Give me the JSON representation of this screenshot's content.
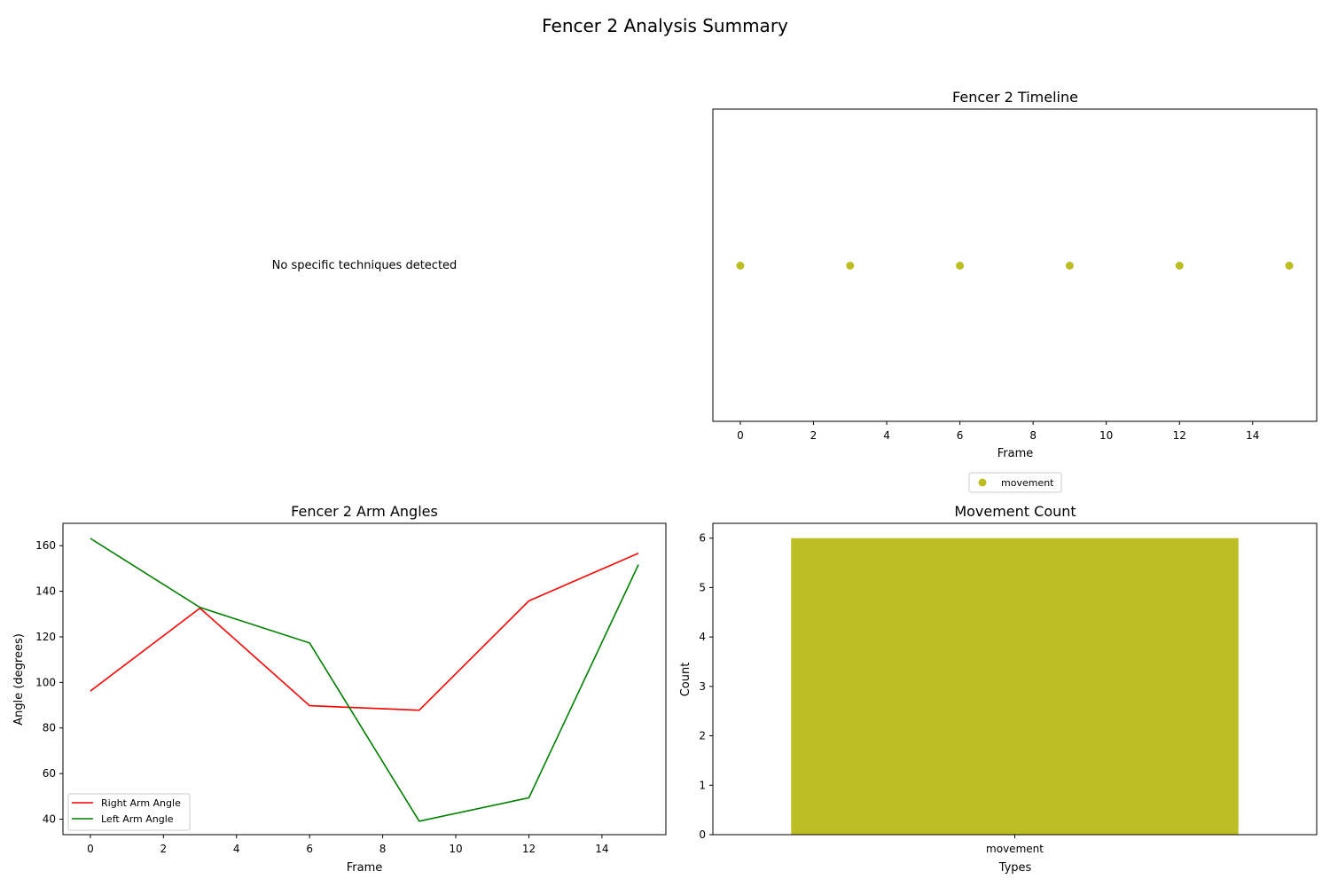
{
  "figure": {
    "title": "Fencer 2 Analysis Summary"
  },
  "chart_data": [
    {
      "type": "table",
      "panel": "techniques",
      "message": "No specific techniques detected"
    },
    {
      "type": "scatter",
      "panel": "timeline",
      "title": "Fencer 2 Timeline",
      "xlabel": "Frame",
      "ylabel": "",
      "xlim": [
        -0.75,
        15.75
      ],
      "xticks": [
        0,
        2,
        4,
        6,
        8,
        10,
        12,
        14
      ],
      "y_axis_visible": false,
      "grid": false,
      "legend": "below-center",
      "series": [
        {
          "name": "movement",
          "color": "#bcbd22",
          "x": [
            0,
            3,
            6,
            9,
            12,
            15
          ],
          "y": [
            0,
            0,
            0,
            0,
            0,
            0
          ]
        }
      ]
    },
    {
      "type": "line",
      "panel": "arm-angles",
      "title": "Fencer 2 Arm Angles",
      "xlabel": "Frame",
      "ylabel": "Angle (degrees)",
      "xlim": [
        -0.75,
        15.75
      ],
      "ylim": [
        33.2,
        169.8
      ],
      "xticks": [
        0,
        2,
        4,
        6,
        8,
        10,
        12,
        14
      ],
      "yticks": [
        40,
        60,
        80,
        100,
        120,
        140,
        160
      ],
      "grid": false,
      "legend": "lower-left",
      "series": [
        {
          "name": "Right Arm Angle",
          "color": "#ff0000",
          "x": [
            0,
            3,
            6,
            9,
            12,
            15
          ],
          "y": [
            96.2,
            132.6,
            89.8,
            87.8,
            135.8,
            156.7
          ]
        },
        {
          "name": "Left Arm Angle",
          "color": "#008000",
          "x": [
            0,
            3,
            6,
            9,
            12,
            15
          ],
          "y": [
            163.2,
            132.9,
            117.3,
            39.1,
            49.4,
            151.7
          ]
        }
      ]
    },
    {
      "type": "bar",
      "panel": "movement-count",
      "title": "Movement Count",
      "xlabel": "Types",
      "ylabel": "Count",
      "categories": [
        "movement"
      ],
      "values": [
        6
      ],
      "colors": [
        "#bcbd22"
      ],
      "ylim": [
        0,
        6.3
      ],
      "yticks": [
        0,
        1,
        2,
        3,
        4,
        5,
        6
      ],
      "grid": false
    }
  ]
}
